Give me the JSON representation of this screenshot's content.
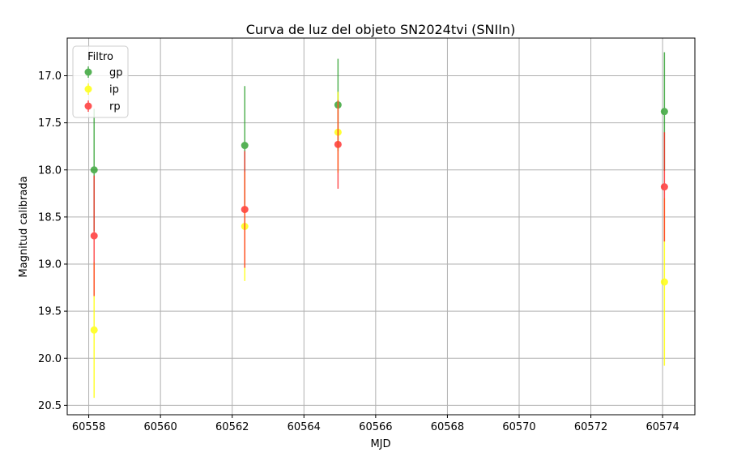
{
  "chart_data": {
    "type": "scatter",
    "title": "Curva de luz del objeto SN2024tvi (SNIIn)",
    "xlabel": "MJD",
    "ylabel": "Magnitud calibrada",
    "xlim": [
      60557.4,
      60574.9
    ],
    "ylim": [
      20.6,
      16.6
    ],
    "y_inverted": true,
    "grid": true,
    "xticks": [
      60558,
      60560,
      60562,
      60564,
      60566,
      60568,
      60570,
      60572,
      60574
    ],
    "yticks": [
      17.0,
      17.5,
      18.0,
      18.5,
      19.0,
      19.5,
      20.0,
      20.5
    ],
    "xtick_labels": [
      "60558",
      "60560",
      "60562",
      "60564",
      "60566",
      "60568",
      "60570",
      "60572",
      "60574"
    ],
    "ytick_labels": [
      "17.0",
      "17.5",
      "18.0",
      "18.5",
      "19.0",
      "19.5",
      "20.0",
      "20.5"
    ],
    "legend": {
      "title": "Filtro",
      "position": "upper left"
    },
    "series": [
      {
        "name": "gp",
        "color": "#2ca02c",
        "x": [
          60558.15,
          60562.35,
          60564.95,
          60574.05
        ],
        "y": [
          18.0,
          17.74,
          17.31,
          17.38
        ],
        "err": [
          0.65,
          0.63,
          0.49,
          0.63
        ]
      },
      {
        "name": "ip",
        "color": "#ffff00",
        "x": [
          60558.15,
          60562.35,
          60564.95,
          60574.05
        ],
        "y": [
          19.7,
          18.6,
          17.6,
          19.19
        ],
        "err": [
          0.72,
          0.58,
          0.43,
          0.89
        ]
      },
      {
        "name": "rp",
        "color": "#ff2a2a",
        "x": [
          60558.15,
          60562.35,
          60564.95,
          60574.05
        ],
        "y": [
          18.7,
          18.42,
          17.73,
          18.18
        ],
        "err": [
          0.64,
          0.62,
          0.47,
          0.58
        ]
      }
    ]
  }
}
